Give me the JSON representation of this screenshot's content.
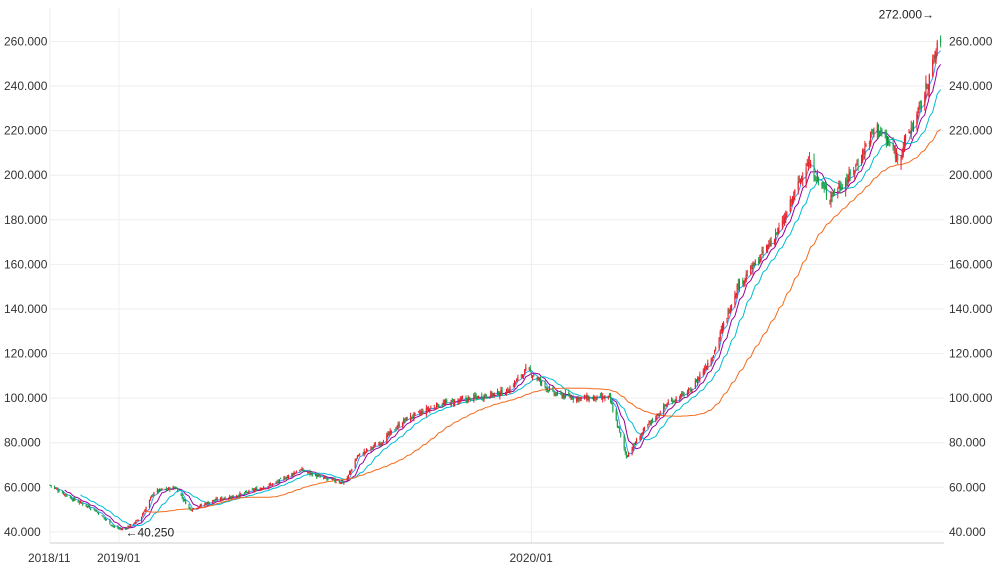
{
  "chart_data": {
    "type": "candlestick",
    "x_range": [
      "2018-11-01",
      "2020-12-31"
    ],
    "ylim": [
      35,
      275
    ],
    "grid": true,
    "y_ticks": [
      "40.000",
      "60.000",
      "80.000",
      "100.000",
      "120.000",
      "140.000",
      "160.000",
      "180.000",
      "200.000",
      "220.000",
      "240.000",
      "260.000"
    ],
    "x_ticks": [
      {
        "label": "2018/11",
        "date": "2018-11-01"
      },
      {
        "label": "2019/01",
        "date": "2019-01-01"
      },
      {
        "label": "2020/01",
        "date": "2020-01-01"
      }
    ],
    "annotations": [
      {
        "text": "←40.250",
        "date": "2019-01-05",
        "value": 40.25,
        "kind": "low"
      },
      {
        "text": "272.000→",
        "date": "2020-12-28",
        "value": 272.0,
        "kind": "high"
      }
    ],
    "colors": {
      "up": "#e8202a",
      "down": "#1aa34a",
      "grid": "#eeeeee",
      "axis": "#cccccc"
    },
    "price_path": [
      [
        "2018-11-01",
        61
      ],
      [
        "2018-11-20",
        55
      ],
      [
        "2018-12-10",
        50
      ],
      [
        "2018-12-28",
        42
      ],
      [
        "2019-01-05",
        41
      ],
      [
        "2019-01-20",
        46
      ],
      [
        "2019-02-01",
        58
      ],
      [
        "2019-02-20",
        60
      ],
      [
        "2019-03-05",
        50
      ],
      [
        "2019-03-25",
        54
      ],
      [
        "2019-04-20",
        57
      ],
      [
        "2019-05-20",
        62
      ],
      [
        "2019-06-10",
        68
      ],
      [
        "2019-06-30",
        64
      ],
      [
        "2019-07-20",
        62
      ],
      [
        "2019-07-31",
        74
      ],
      [
        "2019-08-20",
        80
      ],
      [
        "2019-09-10",
        90
      ],
      [
        "2019-10-10",
        97
      ],
      [
        "2019-11-10",
        100
      ],
      [
        "2019-12-10",
        103
      ],
      [
        "2019-12-28",
        113
      ],
      [
        "2020-01-20",
        102
      ],
      [
        "2020-02-10",
        100
      ],
      [
        "2020-03-10",
        100
      ],
      [
        "2020-03-25",
        74
      ],
      [
        "2020-04-10",
        86
      ],
      [
        "2020-05-01",
        98
      ],
      [
        "2020-05-20",
        103
      ],
      [
        "2020-06-10",
        120
      ],
      [
        "2020-07-01",
        150
      ],
      [
        "2020-07-20",
        162
      ],
      [
        "2020-08-10",
        178
      ],
      [
        "2020-09-01",
        206
      ],
      [
        "2020-09-20",
        190
      ],
      [
        "2020-10-10",
        200
      ],
      [
        "2020-11-01",
        222
      ],
      [
        "2020-11-20",
        208
      ],
      [
        "2020-12-10",
        230
      ],
      [
        "2020-12-28",
        262
      ]
    ],
    "moving_averages": [
      {
        "period": 5,
        "color": "#3399ff"
      },
      {
        "period": 10,
        "color": "#990099"
      },
      {
        "period": 20,
        "color": "#00bcd4"
      },
      {
        "period": 60,
        "color": "#f26b1d"
      }
    ]
  }
}
